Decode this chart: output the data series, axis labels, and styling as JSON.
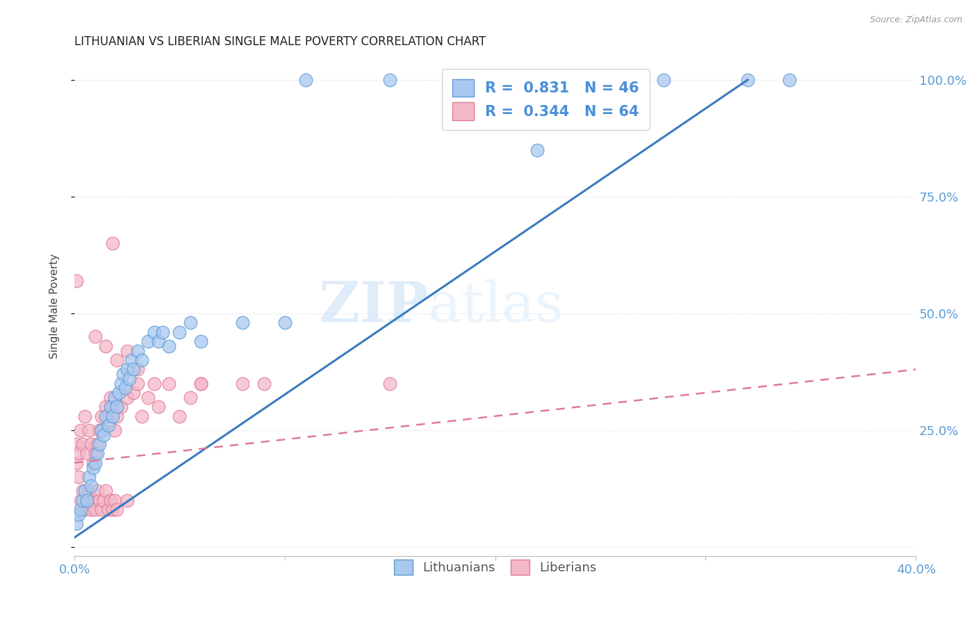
{
  "title": "LITHUANIAN VS LIBERIAN SINGLE MALE POVERTY CORRELATION CHART",
  "source": "Source: ZipAtlas.com",
  "ylabel": "Single Male Poverty",
  "yticks": [
    "",
    "25.0%",
    "50.0%",
    "75.0%",
    "100.0%"
  ],
  "ytick_vals": [
    0.0,
    0.25,
    0.5,
    0.75,
    1.0
  ],
  "xlim": [
    0.0,
    0.4
  ],
  "ylim": [
    -0.02,
    1.05
  ],
  "watermark": "ZIPatlas",
  "blue_scatter_color": "#a8c8f0",
  "blue_edge_color": "#5b9bd5",
  "pink_scatter_color": "#f4b8c8",
  "pink_edge_color": "#e07898",
  "trend_blue_color": "#3a7bbf",
  "trend_pink_color": "#d06880",
  "blue_points": [
    [
      0.001,
      0.05
    ],
    [
      0.002,
      0.07
    ],
    [
      0.003,
      0.08
    ],
    [
      0.004,
      0.1
    ],
    [
      0.005,
      0.12
    ],
    [
      0.006,
      0.1
    ],
    [
      0.007,
      0.15
    ],
    [
      0.008,
      0.13
    ],
    [
      0.009,
      0.17
    ],
    [
      0.01,
      0.18
    ],
    [
      0.011,
      0.2
    ],
    [
      0.012,
      0.22
    ],
    [
      0.013,
      0.25
    ],
    [
      0.014,
      0.24
    ],
    [
      0.015,
      0.28
    ],
    [
      0.016,
      0.26
    ],
    [
      0.017,
      0.3
    ],
    [
      0.018,
      0.28
    ],
    [
      0.019,
      0.32
    ],
    [
      0.02,
      0.3
    ],
    [
      0.021,
      0.33
    ],
    [
      0.022,
      0.35
    ],
    [
      0.023,
      0.37
    ],
    [
      0.024,
      0.34
    ],
    [
      0.025,
      0.38
    ],
    [
      0.026,
      0.36
    ],
    [
      0.027,
      0.4
    ],
    [
      0.028,
      0.38
    ],
    [
      0.03,
      0.42
    ],
    [
      0.032,
      0.4
    ],
    [
      0.035,
      0.44
    ],
    [
      0.038,
      0.46
    ],
    [
      0.04,
      0.44
    ],
    [
      0.042,
      0.46
    ],
    [
      0.045,
      0.43
    ],
    [
      0.05,
      0.46
    ],
    [
      0.055,
      0.48
    ],
    [
      0.06,
      0.44
    ],
    [
      0.08,
      0.48
    ],
    [
      0.1,
      0.48
    ],
    [
      0.11,
      1.0
    ],
    [
      0.15,
      1.0
    ],
    [
      0.22,
      0.85
    ],
    [
      0.28,
      1.0
    ],
    [
      0.32,
      1.0
    ],
    [
      0.34,
      1.0
    ]
  ],
  "pink_points": [
    [
      0.001,
      0.18
    ],
    [
      0.001,
      0.22
    ],
    [
      0.002,
      0.2
    ],
    [
      0.002,
      0.15
    ],
    [
      0.003,
      0.25
    ],
    [
      0.003,
      0.1
    ],
    [
      0.004,
      0.22
    ],
    [
      0.004,
      0.12
    ],
    [
      0.005,
      0.28
    ],
    [
      0.005,
      0.08
    ],
    [
      0.006,
      0.2
    ],
    [
      0.006,
      0.1
    ],
    [
      0.007,
      0.25
    ],
    [
      0.007,
      0.12
    ],
    [
      0.008,
      0.22
    ],
    [
      0.008,
      0.08
    ],
    [
      0.009,
      0.18
    ],
    [
      0.009,
      0.1
    ],
    [
      0.01,
      0.2
    ],
    [
      0.01,
      0.08
    ],
    [
      0.011,
      0.22
    ],
    [
      0.011,
      0.12
    ],
    [
      0.012,
      0.25
    ],
    [
      0.012,
      0.1
    ],
    [
      0.013,
      0.28
    ],
    [
      0.013,
      0.08
    ],
    [
      0.014,
      0.25
    ],
    [
      0.014,
      0.1
    ],
    [
      0.015,
      0.3
    ],
    [
      0.015,
      0.12
    ],
    [
      0.016,
      0.28
    ],
    [
      0.016,
      0.08
    ],
    [
      0.017,
      0.32
    ],
    [
      0.017,
      0.1
    ],
    [
      0.018,
      0.3
    ],
    [
      0.018,
      0.08
    ],
    [
      0.019,
      0.25
    ],
    [
      0.019,
      0.1
    ],
    [
      0.02,
      0.28
    ],
    [
      0.02,
      0.08
    ],
    [
      0.022,
      0.3
    ],
    [
      0.025,
      0.32
    ],
    [
      0.025,
      0.1
    ],
    [
      0.028,
      0.33
    ],
    [
      0.03,
      0.35
    ],
    [
      0.032,
      0.28
    ],
    [
      0.035,
      0.32
    ],
    [
      0.038,
      0.35
    ],
    [
      0.04,
      0.3
    ],
    [
      0.045,
      0.35
    ],
    [
      0.05,
      0.28
    ],
    [
      0.055,
      0.32
    ],
    [
      0.06,
      0.35
    ],
    [
      0.08,
      0.35
    ],
    [
      0.001,
      0.57
    ],
    [
      0.01,
      0.45
    ],
    [
      0.015,
      0.43
    ],
    [
      0.018,
      0.65
    ],
    [
      0.02,
      0.4
    ],
    [
      0.025,
      0.42
    ],
    [
      0.03,
      0.38
    ],
    [
      0.06,
      0.35
    ],
    [
      0.09,
      0.35
    ],
    [
      0.15,
      0.35
    ]
  ],
  "blue_trend_x": [
    0.0,
    0.32
  ],
  "blue_trend_y": [
    0.02,
    1.0
  ],
  "pink_trend_x": [
    0.0,
    0.4
  ],
  "pink_trend_y": [
    0.18,
    0.38
  ]
}
